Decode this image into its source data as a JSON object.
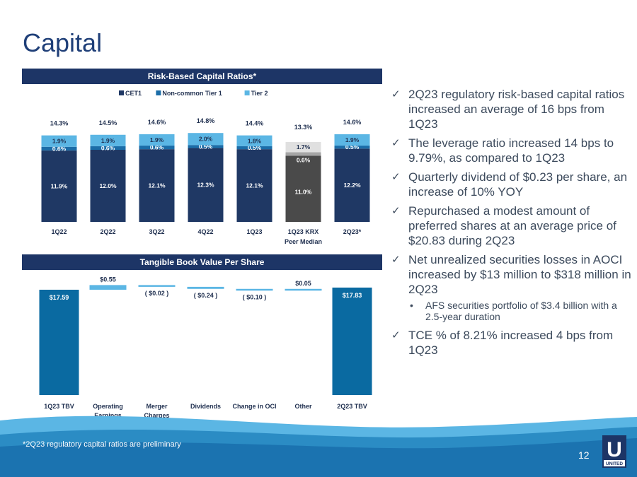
{
  "title": "Capital",
  "chart1_header": "Risk-Based Capital Ratios*",
  "chart2_header": "Tangible Book Value Per Share",
  "chart_data": [
    {
      "type": "bar",
      "stacked": true,
      "title": "Risk-Based Capital Ratios*",
      "categories": [
        "1Q22",
        "2Q22",
        "3Q22",
        "4Q22",
        "1Q23",
        "1Q23 KRX Peer Median",
        "2Q23*"
      ],
      "category_lines": [
        [
          "1Q22"
        ],
        [
          "2Q22"
        ],
        [
          "3Q22"
        ],
        [
          "4Q22"
        ],
        [
          "1Q23"
        ],
        [
          "1Q23 KRX",
          "Peer Median"
        ],
        [
          "2Q23*"
        ]
      ],
      "series": [
        {
          "name": "CET1",
          "color": "#1f3864",
          "values": [
            11.9,
            12.0,
            12.1,
            12.3,
            12.1,
            11.0,
            12.2
          ],
          "labels": [
            "11.9%",
            "12.0%",
            "12.1%",
            "12.3%",
            "12.1%",
            "11.0%",
            "12.2%"
          ]
        },
        {
          "name": "Non-common Tier 1",
          "color": "#1b6da8",
          "values": [
            0.6,
            0.6,
            0.6,
            0.5,
            0.5,
            0.6,
            0.5
          ],
          "labels": [
            "0.6%",
            "0.6%",
            "0.6%",
            "0.5%",
            "0.5%",
            "0.6%",
            "0.5%"
          ]
        },
        {
          "name": "Tier 2",
          "color": "#5bb6e4",
          "values": [
            1.9,
            1.9,
            1.9,
            2.0,
            1.8,
            1.7,
            1.9
          ],
          "labels": [
            "1.9%",
            "1.9%",
            "1.9%",
            "2.0%",
            "1.8%",
            "1.7%",
            "1.9%"
          ]
        }
      ],
      "peer_colors": [
        "#4a4a4a",
        "#a6a6a6",
        "#e0e0e0"
      ],
      "totals": [
        "14.3%",
        "14.5%",
        "14.6%",
        "14.8%",
        "14.4%",
        "13.3%",
        "14.6%"
      ],
      "legend": [
        "CET1",
        "Non-common Tier 1",
        "Tier 2"
      ],
      "legend_position": "top",
      "ylim": [
        0,
        15
      ]
    },
    {
      "type": "bar",
      "subtype": "waterfall",
      "title": "Tangible Book Value Per Share",
      "categories": [
        "1Q23 TBV",
        "Operating Earnings",
        "Merger Charges",
        "Dividends",
        "Change in OCI",
        "Other",
        "2Q23 TBV"
      ],
      "category_lines": [
        [
          "1Q23 TBV"
        ],
        [
          "Operating",
          "Earnings"
        ],
        [
          "Merger",
          "Charges"
        ],
        [
          "Dividends"
        ],
        [
          "Change in OCI"
        ],
        [
          "Other"
        ],
        [
          "2Q23 TBV"
        ]
      ],
      "values": [
        17.59,
        0.55,
        -0.02,
        -0.24,
        -0.1,
        0.05,
        17.83
      ],
      "labels": [
        "$17.59",
        "$0.55",
        "( $0.02 )",
        "( $0.24 )",
        "( $0.10 )",
        "$0.05",
        "$17.83"
      ],
      "kinds": [
        "total",
        "delta",
        "delta",
        "delta",
        "delta",
        "delta",
        "total"
      ],
      "total_color": "#0a6aa1",
      "delta_color": "#5bb6e4"
    }
  ],
  "bullets": [
    {
      "text": "2Q23 regulatory risk-based capital ratios increased an average of 16 bps from 1Q23"
    },
    {
      "text": "The leverage ratio increased 14 bps to 9.79%, as compared to 1Q23"
    },
    {
      "text": "Quarterly dividend of $0.23 per share, an increase of 10% YOY"
    },
    {
      "text": "Repurchased a modest amount of preferred shares at an average price of $20.83 during 2Q23"
    },
    {
      "text": "Net unrealized securities losses in AOCI increased by $13 million to $318 million in 2Q23",
      "sub": "AFS securities portfolio of $3.4 billion with a 2.5-year duration"
    },
    {
      "text": "TCE % of 8.21% increased 4 bps from 1Q23"
    }
  ],
  "check_glyph": "✓",
  "sub_glyph": "•",
  "footnote": "*2Q23 regulatory capital ratios are preliminary",
  "page_number": "12",
  "logo": {
    "letter": "U",
    "word": "UNITED"
  }
}
